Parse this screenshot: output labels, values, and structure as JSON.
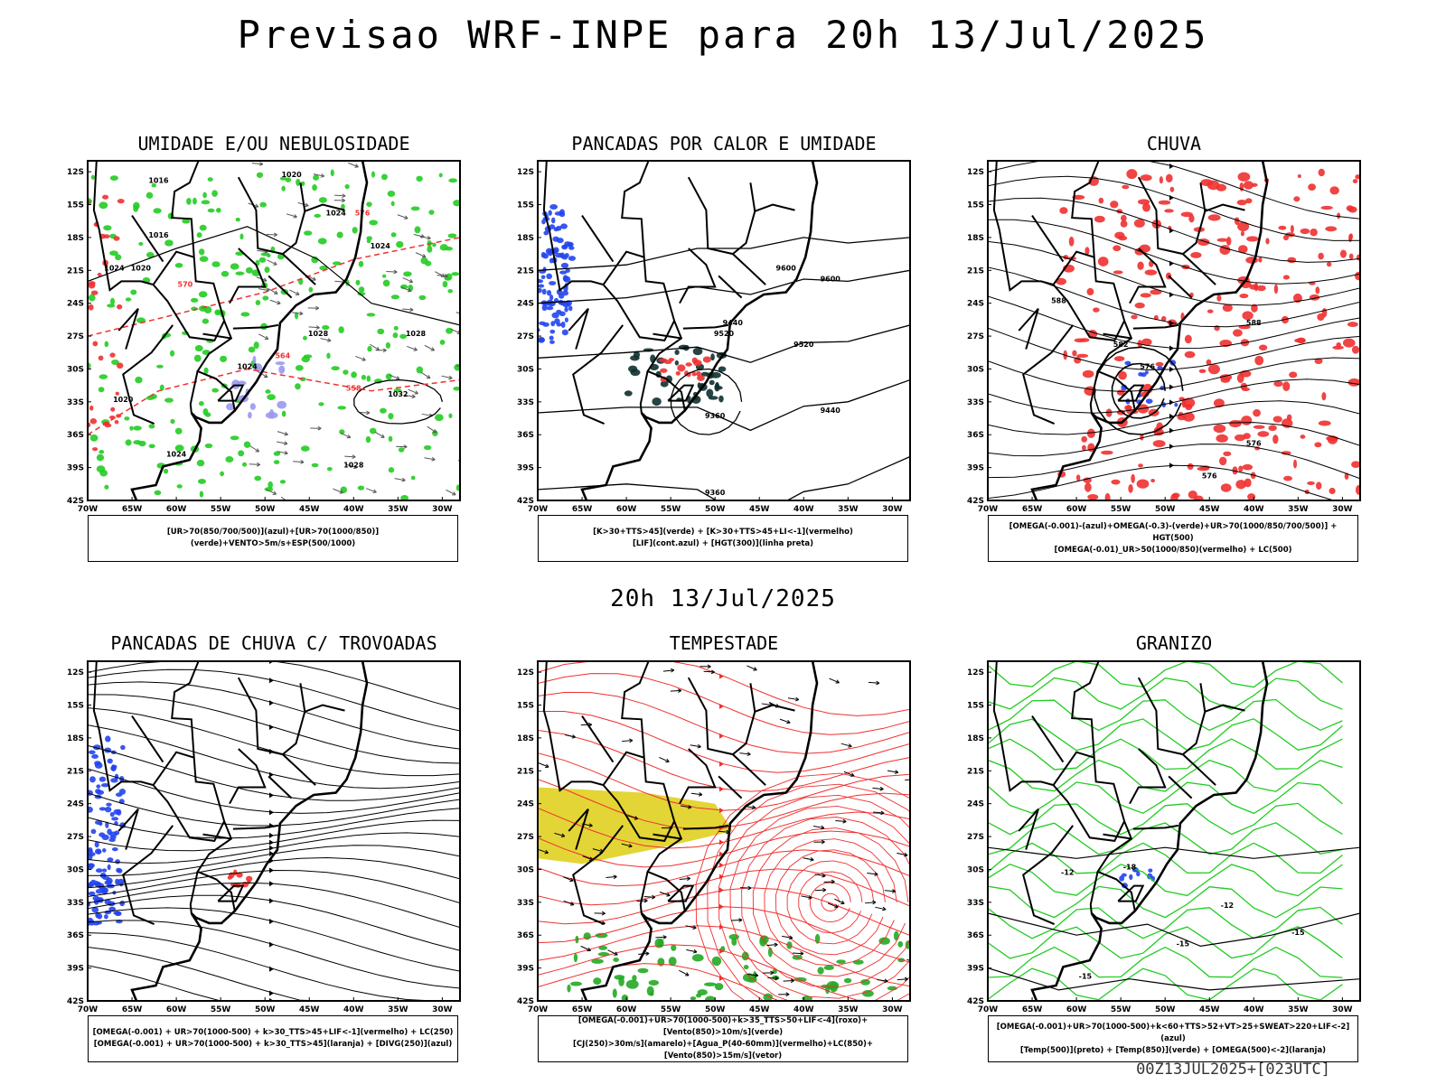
{
  "header": {
    "title": "Previsao WRF-INPE  para 20h 13/Jul/2025"
  },
  "mid_title": "20h 13/Jul/2025",
  "footer": "00Z13JUL2025+[023UTC]",
  "axes": {
    "lat_labels": [
      "12S",
      "15S",
      "18S",
      "21S",
      "24S",
      "27S",
      "30S",
      "33S",
      "36S",
      "39S",
      "42S"
    ],
    "lon_labels": [
      "70W",
      "65W",
      "60W",
      "55W",
      "50W",
      "45W",
      "40W",
      "35W",
      "30W"
    ]
  },
  "panels": [
    {
      "title": "UMIDADE E/OU NEBULOSIDADE",
      "legend": [
        "[UR>70(850/700/500)](azul)+[UR>70(1000/850)](verde)+VENTO>5m/s+ESP(500/1000)"
      ],
      "contour_labels": [
        "1016",
        "1020",
        "1024",
        "1028",
        "1032",
        "570",
        "564",
        "558",
        "576"
      ]
    },
    {
      "title": "PANCADAS POR CALOR E UMIDADE",
      "legend": [
        "[K>30+TTS>45](verde) + [K>30+TTS>45+LI<-1](vermelho)",
        "[LIF](cont.azul) + [HGT(300)](linha preta)"
      ],
      "contour_labels": [
        "9600",
        "9520",
        "9440",
        "9360"
      ]
    },
    {
      "title": "CHUVA",
      "legend": [
        "[OMEGA(-0.001)-(azul)+OMEGA(-0.3)-(verde)+UR>70(1000/850/700/500)] + HGT(500)",
        "[OMEGA(-0.01)_UR>50(1000/850)(vermelho) + LC(500)"
      ],
      "contour_labels": [
        "588",
        "582",
        "576"
      ]
    },
    {
      "title": "PANCADAS DE CHUVA C/ TROVOADAS",
      "legend": [
        "[OMEGA(-0.001) + UR>70(1000-500) + k>30_TTS>45+LIF<-1](vermelho) + LC(250)",
        "[OMEGA(-0.001) + UR>70(1000-500) + k>30_TTS>45](laranja) + [DIVG(250)](azul)"
      ],
      "contour_labels": []
    },
    {
      "title": "TEMPESTADE",
      "legend": [
        "[OMEGA(-0.001)+UR>70(1000-500)+k>35_TTS>50+LIF<-4](roxo)+[Vento(850)>10m/s](verde)",
        "[CJ(250)>30m/s](amarelo)+[Agua_P(40-60mm)](vermelho)+LC(850)+[Vento(850)>15m/s](vetor)"
      ],
      "contour_labels": []
    },
    {
      "title": "GRANIZO",
      "legend": [
        "[OMEGA(-0.001)+UR>70(1000-500)+k<60+TTS>52+VT>25+SWEAT>220+LIF<-2](azul)",
        "[Temp(500)](preto) + [Temp(850)](verde) + [OMEGA(500)<-2](laranja)"
      ],
      "contour_labels": [
        "-12",
        "-15",
        "-18"
      ]
    }
  ],
  "colors": {
    "green": "#22cc22",
    "red": "#f03030",
    "blue": "#2244ee",
    "yellow": "#e0d020",
    "dark": "#0e3030",
    "lavender": "#9999ee"
  }
}
